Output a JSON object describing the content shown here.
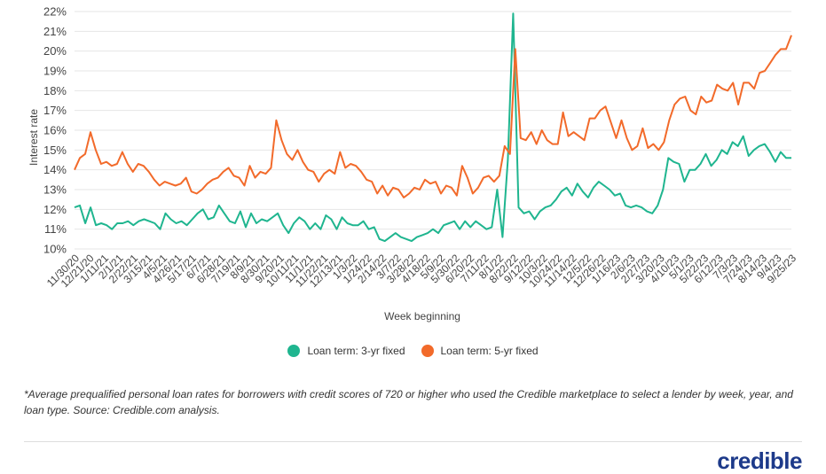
{
  "chart_data": {
    "type": "line",
    "ylabel": "Interest rate",
    "xlabel": "Week beginning",
    "ylim": [
      10,
      22
    ],
    "y_ticks": [
      "10%",
      "11%",
      "12%",
      "13%",
      "14%",
      "15%",
      "16%",
      "17%",
      "18%",
      "19%",
      "20%",
      "21%",
      "22%"
    ],
    "grid": "horizontal",
    "legend_position": "bottom-center",
    "x_tick_labels": [
      "11/30/20",
      "12/21/20",
      "1/11/21",
      "2/1/21",
      "2/22/21",
      "3/15/21",
      "4/5/21",
      "4/26/21",
      "5/17/21",
      "6/7/21",
      "6/28/21",
      "7/19/21",
      "8/9/21",
      "8/30/21",
      "9/20/21",
      "10/11/21",
      "11/1/21",
      "11/22/21",
      "12/13/21",
      "1/3/22",
      "1/24/22",
      "2/14/22",
      "3/7/22",
      "3/28/22",
      "4/18/22",
      "5/9/22",
      "5/30/22",
      "6/20/22",
      "7/11/22",
      "8/1/22",
      "8/22/22",
      "9/12/22",
      "10/3/22",
      "10/24/22",
      "11/14/22",
      "12/5/22",
      "12/26/22",
      "1/16/23",
      "2/6/23",
      "2/27/23",
      "3/20/23",
      "4/10/23",
      "5/1/23",
      "5/22/23",
      "6/12/23",
      "7/3/23",
      "7/24/23",
      "8/14/23",
      "9/4/23",
      "9/25/23"
    ],
    "series": [
      {
        "name": "Loan term: 3-yr fixed",
        "color": "#1fb58f",
        "values": [
          12.1,
          12.2,
          11.3,
          12.1,
          11.2,
          11.3,
          11.2,
          11.0,
          11.3,
          11.3,
          11.4,
          11.2,
          11.4,
          11.5,
          11.4,
          11.3,
          11.0,
          11.8,
          11.5,
          11.3,
          11.4,
          11.2,
          11.5,
          11.8,
          12.0,
          11.5,
          11.6,
          12.2,
          11.8,
          11.4,
          11.3,
          11.9,
          11.1,
          11.8,
          11.3,
          11.5,
          11.4,
          11.6,
          11.8,
          11.2,
          10.8,
          11.3,
          11.6,
          11.4,
          11.0,
          11.3,
          11.0,
          11.7,
          11.5,
          11.0,
          11.6,
          11.3,
          11.2,
          11.2,
          11.4,
          11.0,
          11.1,
          10.5,
          10.4,
          10.6,
          10.8,
          10.6,
          10.5,
          10.4,
          10.6,
          10.7,
          10.8,
          11.0,
          10.8,
          11.2,
          11.3,
          11.4,
          11.0,
          11.4,
          11.1,
          11.4,
          11.2,
          11.0,
          11.1,
          13.0,
          10.6,
          14.5,
          21.9,
          12.1,
          11.8,
          11.9,
          11.5,
          11.9,
          12.1,
          12.2,
          12.5,
          12.9,
          13.1,
          12.7,
          13.3,
          12.9,
          12.6,
          13.1,
          13.4,
          13.2,
          13.0,
          12.7,
          12.8,
          12.2,
          12.1,
          12.2,
          12.1,
          11.9,
          11.8,
          12.2,
          13.0,
          14.6,
          14.4,
          14.3,
          13.4,
          14.0,
          14.0,
          14.3,
          14.8,
          14.2,
          14.5,
          15.0,
          14.8,
          15.4,
          15.2,
          15.7,
          14.7,
          15.0,
          15.2,
          15.3,
          14.9,
          14.4,
          14.9,
          14.6,
          14.6
        ]
      },
      {
        "name": "Loan term: 5-yr fixed",
        "color": "#f26a2a",
        "values": [
          14.0,
          14.6,
          14.8,
          15.9,
          15.0,
          14.3,
          14.4,
          14.2,
          14.3,
          14.9,
          14.3,
          13.9,
          14.3,
          14.2,
          13.9,
          13.5,
          13.2,
          13.4,
          13.3,
          13.2,
          13.3,
          13.6,
          12.9,
          12.8,
          13.0,
          13.3,
          13.5,
          13.6,
          13.9,
          14.1,
          13.7,
          13.6,
          13.2,
          14.2,
          13.6,
          13.9,
          13.8,
          14.1,
          16.5,
          15.5,
          14.8,
          14.5,
          15.0,
          14.4,
          14.0,
          13.9,
          13.4,
          13.8,
          14.0,
          13.8,
          14.9,
          14.1,
          14.3,
          14.2,
          13.9,
          13.5,
          13.4,
          12.8,
          13.2,
          12.7,
          13.1,
          13.0,
          12.6,
          12.8,
          13.1,
          13.0,
          13.5,
          13.3,
          13.4,
          12.8,
          13.2,
          13.1,
          12.7,
          14.2,
          13.6,
          12.8,
          13.1,
          13.6,
          13.7,
          13.4,
          13.7,
          15.2,
          14.8,
          20.1,
          15.6,
          15.5,
          15.9,
          15.3,
          16.0,
          15.5,
          15.3,
          15.3,
          16.9,
          15.7,
          15.9,
          15.7,
          15.5,
          16.6,
          16.6,
          17.0,
          17.2,
          16.4,
          15.6,
          16.5,
          15.6,
          15.0,
          15.2,
          16.1,
          15.1,
          15.3,
          15.0,
          15.4,
          16.5,
          17.3,
          17.6,
          17.7,
          17.0,
          16.8,
          17.7,
          17.4,
          17.5,
          18.3,
          18.1,
          18.0,
          18.4,
          17.3,
          18.4,
          18.4,
          18.1,
          18.9,
          19.0,
          19.4,
          19.8,
          20.1,
          20.1,
          20.8
        ]
      }
    ]
  },
  "legend": [
    {
      "label": "Loan term: 3-yr fixed",
      "color": "#1fb58f"
    },
    {
      "label": "Loan term: 5-yr fixed",
      "color": "#f26a2a"
    }
  ],
  "footnote": "*Average prequalified personal loan rates for borrowers with credit scores of 720 or higher who used the Credible marketplace to select a lender by week, year, and loan type. Source: Credible.com analysis.",
  "brand": {
    "logo_text": "credible",
    "color": "#1d3a8a"
  }
}
